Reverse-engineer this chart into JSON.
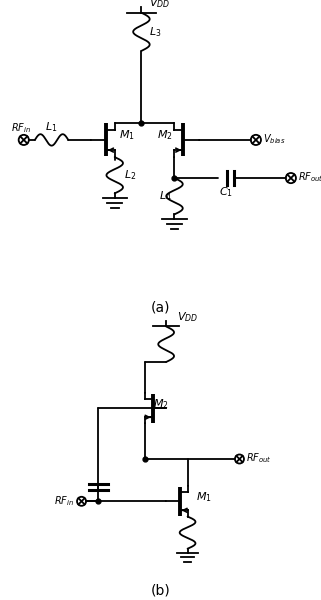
{
  "fig_width": 3.21,
  "fig_height": 6.0,
  "dpi": 100,
  "lw": 1.3,
  "lw_thick": 2.2,
  "lw_bar": 2.8,
  "coil_lw": 1.3,
  "font_label": 9,
  "font_sub": 8,
  "font_port": 7
}
